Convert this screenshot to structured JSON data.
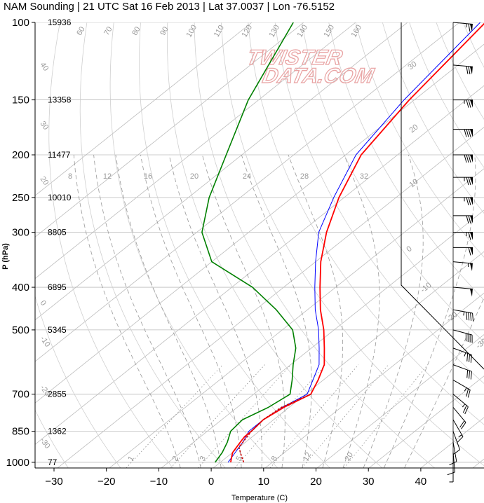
{
  "title": "NAM Sounding | 21 UTC Sat 16 Feb 2013 | Lat 37.0037 | Lon -76.5152",
  "watermark": {
    "line1": "TWISTER",
    "line2": "DATA.COM"
  },
  "colors": {
    "temperature": "#ff0000",
    "dewpoint": "#008000",
    "wetbulb": "#0000ff",
    "parcel": "#cc0000",
    "isobar": "#bbbbbb",
    "isotherm": "#bbbbbb",
    "dry_adiabat": "#cfcfcf",
    "moist_adiabat": "#9a9a9a",
    "mixing_ratio": "#9a9a9a",
    "wind": "#000000"
  },
  "chart_data": {
    "type": "skew-t",
    "xlabel": "Temperature (C)",
    "ylabel": "P (hPa)",
    "xlim": [
      -34,
      53
    ],
    "ylim": [
      1030,
      100
    ],
    "x_ticks": [
      "−30",
      "−20",
      "−10",
      "0",
      "10",
      "20",
      "30",
      "40"
    ],
    "pressure_ticks": [
      {
        "p": 100,
        "label": "100",
        "height": "15936"
      },
      {
        "p": 150,
        "label": "150",
        "height": "13358"
      },
      {
        "p": 200,
        "label": "200",
        "height": "11477"
      },
      {
        "p": 250,
        "label": "250",
        "height": "10010"
      },
      {
        "p": 300,
        "label": "300",
        "height": "8805"
      },
      {
        "p": 400,
        "label": "400",
        "height": "6895"
      },
      {
        "p": 500,
        "label": "500",
        "height": "5345"
      },
      {
        "p": 700,
        "label": "700",
        "height": "2855"
      },
      {
        "p": 850,
        "label": "850",
        "height": "1362"
      },
      {
        "p": 1000,
        "label": "1000",
        "height": "77"
      }
    ],
    "isotherm_labels": [
      "40",
      "30",
      "20",
      "10",
      "0",
      "-10",
      "-20",
      "-30",
      "-40"
    ],
    "dry_adiabat_labels": [
      "60",
      "70",
      "80",
      "90",
      "100",
      "110",
      "120",
      "130",
      "140",
      "150",
      "160"
    ],
    "moist_adiabat_labels": [
      "8",
      "12",
      "16",
      "20",
      "24",
      "28",
      "32"
    ],
    "mixing_ratio_labels": [
      "1",
      "2",
      "3",
      "5",
      "8",
      "12",
      "20"
    ],
    "temperature": {
      "name": "Temperature",
      "p": [
        1000,
        975,
        950,
        925,
        900,
        875,
        850,
        800,
        750,
        700,
        650,
        600,
        550,
        500,
        450,
        400,
        350,
        300,
        250,
        200,
        150,
        100
      ],
      "t": [
        2,
        1,
        0,
        -0.5,
        -1,
        -1.5,
        -1.5,
        -2,
        -1,
        1,
        -1,
        -3.5,
        -7.5,
        -12,
        -17.5,
        -23,
        -29,
        -35,
        -41,
        -47,
        -51,
        -55
      ]
    },
    "dewpoint": {
      "name": "Dew point",
      "p": [
        1000,
        950,
        900,
        850,
        800,
        750,
        700,
        650,
        600,
        550,
        500,
        450,
        400,
        350,
        300,
        250,
        200,
        150,
        100
      ],
      "t": [
        -1,
        -2,
        -3.5,
        -5.5,
        -6,
        -4,
        -3,
        -6,
        -9.5,
        -13,
        -18,
        -26,
        -36,
        -50,
        -59,
        -66,
        -73,
        -82,
        -92
      ]
    },
    "wetbulb": {
      "name": "Wet bulb",
      "p": [
        1000,
        950,
        900,
        850,
        800,
        750,
        700,
        650,
        600,
        550,
        500,
        450,
        400,
        350,
        300,
        250,
        200,
        150,
        100
      ],
      "t": [
        1.5,
        0.5,
        -0.5,
        -2,
        -2,
        -1.3,
        0.3,
        -2,
        -4.5,
        -8.5,
        -13,
        -18.5,
        -24,
        -30,
        -36.5,
        -42,
        -48,
        -52,
        -56
      ]
    },
    "parcel": {
      "name": "Parcel",
      "p": [
        1000,
        975,
        950,
        925,
        900,
        875,
        850,
        800,
        750,
        700
      ],
      "t": [
        4.5,
        3,
        1.5,
        0,
        -0.5,
        -1,
        -1.5,
        -2,
        -1.5,
        1
      ]
    },
    "wind_barbs": [
      {
        "p": 100,
        "spd": 65,
        "dir": 275
      },
      {
        "p": 125,
        "spd": 70,
        "dir": 275
      },
      {
        "p": 150,
        "spd": 75,
        "dir": 270
      },
      {
        "p": 175,
        "spd": 80,
        "dir": 270
      },
      {
        "p": 200,
        "spd": 80,
        "dir": 270
      },
      {
        "p": 225,
        "spd": 75,
        "dir": 270
      },
      {
        "p": 250,
        "spd": 75,
        "dir": 270
      },
      {
        "p": 275,
        "spd": 70,
        "dir": 270
      },
      {
        "p": 300,
        "spd": 65,
        "dir": 270
      },
      {
        "p": 325,
        "spd": 60,
        "dir": 270
      },
      {
        "p": 350,
        "spd": 55,
        "dir": 275
      },
      {
        "p": 400,
        "spd": 50,
        "dir": 275
      },
      {
        "p": 450,
        "spd": 45,
        "dir": 280
      },
      {
        "p": 500,
        "spd": 40,
        "dir": 285
      },
      {
        "p": 550,
        "spd": 35,
        "dir": 290
      },
      {
        "p": 600,
        "spd": 30,
        "dir": 290
      },
      {
        "p": 650,
        "spd": 25,
        "dir": 300
      },
      {
        "p": 700,
        "spd": 25,
        "dir": 310
      },
      {
        "p": 750,
        "spd": 20,
        "dir": 320
      },
      {
        "p": 800,
        "spd": 15,
        "dir": 330
      },
      {
        "p": 850,
        "spd": 10,
        "dir": 340
      },
      {
        "p": 900,
        "spd": 10,
        "dir": 350
      },
      {
        "p": 950,
        "spd": 10,
        "dir": 355
      },
      {
        "p": 1000,
        "spd": 5,
        "dir": 0
      }
    ]
  }
}
